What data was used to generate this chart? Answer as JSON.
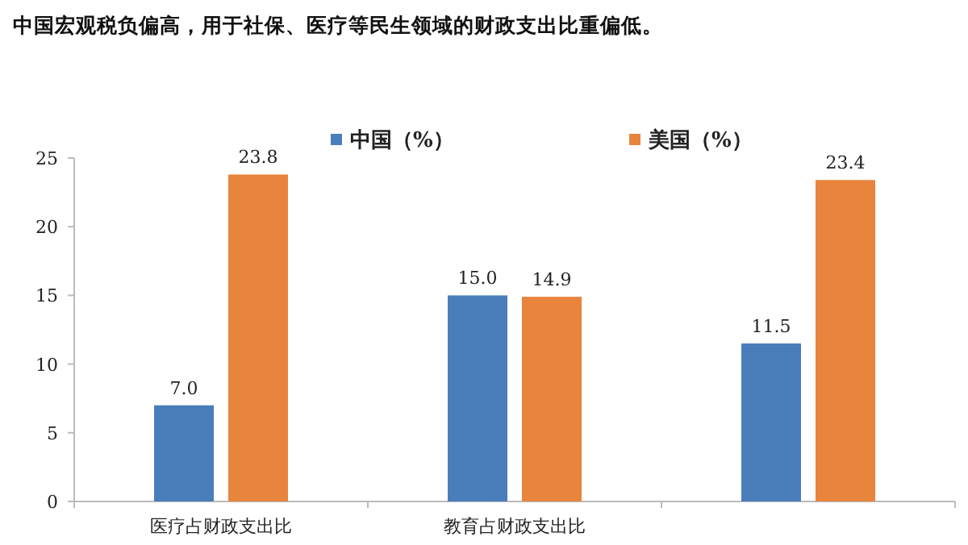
{
  "chart_data": {
    "type": "bar",
    "title": "中国宏观税负偏高，用于社保、医疗等民生领域的财政支出比重偏低。",
    "categories": [
      "医疗占财政支出比",
      "教育占财政支出比",
      null
    ],
    "series": [
      {
        "name": "中国（%）",
        "color": "#4a7ebb",
        "values": [
          7.0,
          15.0,
          11.5
        ],
        "value_labels": [
          "7.0",
          "15.0",
          "11.5"
        ]
      },
      {
        "name": "美国（%）",
        "color": "#e8843c",
        "values": [
          23.8,
          14.9,
          23.4
        ],
        "value_labels": [
          "23.8",
          "14.9",
          "23.4"
        ]
      }
    ],
    "ylim": [
      0,
      25
    ],
    "yticks": [
      0,
      5,
      10,
      15,
      20,
      25
    ],
    "legend": "top",
    "grid": false
  }
}
